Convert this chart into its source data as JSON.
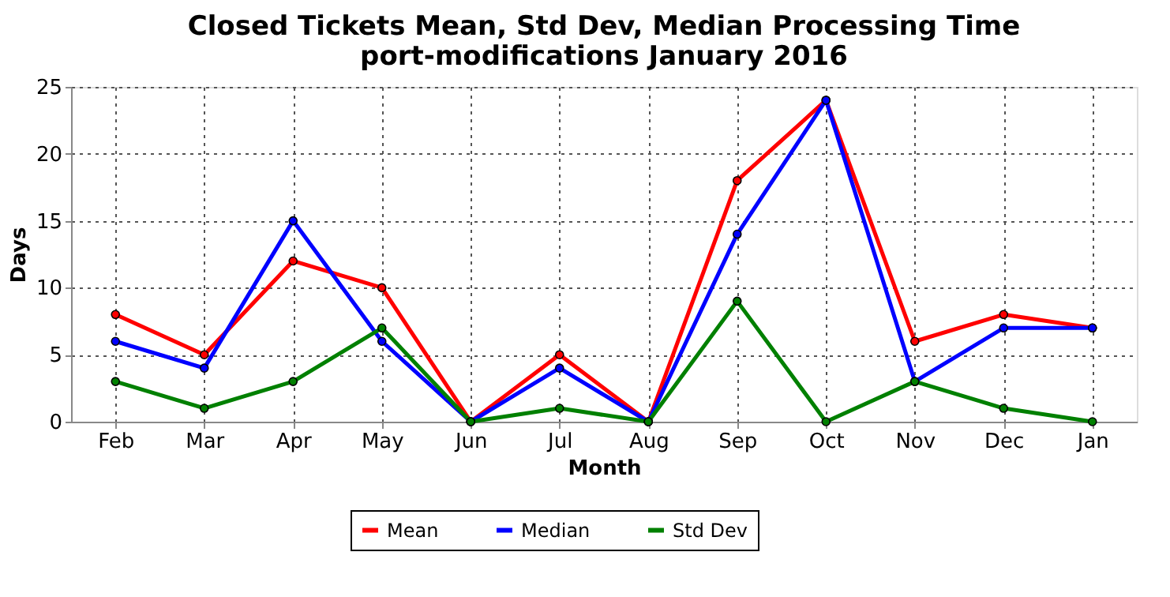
{
  "chart_data": {
    "type": "line",
    "title": "Closed Tickets Mean, Std Dev, Median Processing Time",
    "subtitle": "port-modifications January 2016",
    "xlabel": "Month",
    "ylabel": "Days",
    "categories": [
      "Feb",
      "Mar",
      "Apr",
      "May",
      "Jun",
      "Jul",
      "Aug",
      "Sep",
      "Oct",
      "Nov",
      "Dec",
      "Jan"
    ],
    "series": [
      {
        "name": "Mean",
        "color": "#ff0000",
        "values": [
          8,
          5,
          12,
          10,
          0,
          5,
          0,
          18,
          24,
          6,
          8,
          7
        ]
      },
      {
        "name": "Median",
        "color": "#0000ff",
        "values": [
          6,
          4,
          15,
          6,
          0,
          4,
          0,
          14,
          24,
          3,
          7,
          7
        ]
      },
      {
        "name": "Std Dev",
        "color": "#008000",
        "values": [
          3,
          1,
          3,
          7,
          0,
          1,
          0,
          9,
          0,
          3,
          1,
          0
        ]
      }
    ],
    "ylim": [
      0,
      25
    ],
    "yticks": [
      0,
      5,
      10,
      15,
      20,
      25
    ],
    "grid": true,
    "legend": "bottom",
    "marker": "circle",
    "line_style": "solid"
  }
}
